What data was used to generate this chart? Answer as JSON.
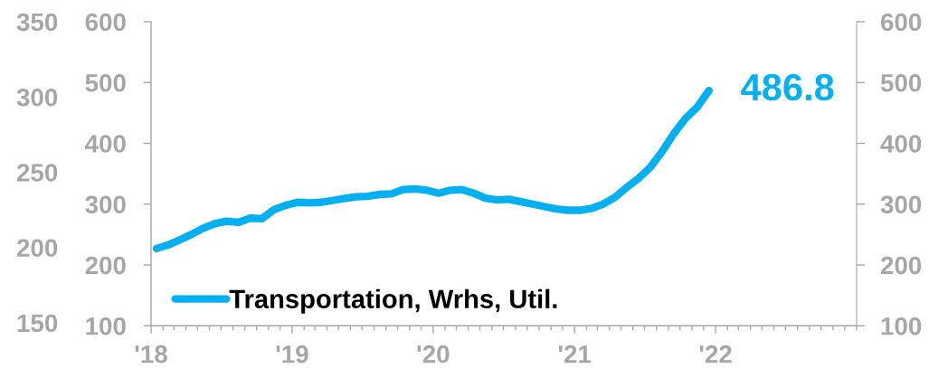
{
  "chart_data": {
    "type": "line",
    "x": [
      "2018-01-15",
      "2018-02-15",
      "2018-03-15",
      "2018-04-15",
      "2018-05-15",
      "2018-06-15",
      "2018-07-15",
      "2018-08-15",
      "2018-09-15",
      "2018-10-15",
      "2018-11-15",
      "2018-12-15",
      "2019-01-15",
      "2019-02-15",
      "2019-03-15",
      "2019-04-15",
      "2019-05-15",
      "2019-06-15",
      "2019-07-15",
      "2019-08-15",
      "2019-09-15",
      "2019-10-15",
      "2019-11-15",
      "2019-12-15",
      "2020-01-15",
      "2020-02-15",
      "2020-03-15",
      "2020-04-15",
      "2020-05-15",
      "2020-06-15",
      "2020-07-15",
      "2020-08-15",
      "2020-09-15",
      "2020-10-15",
      "2020-11-15",
      "2020-12-15",
      "2021-01-15",
      "2021-02-15",
      "2021-03-15",
      "2021-04-15",
      "2021-05-15",
      "2021-06-15",
      "2021-07-15",
      "2021-08-15",
      "2021-09-15",
      "2021-10-15",
      "2021-11-15",
      "2021-12-15"
    ],
    "series": [
      {
        "name": "Transportation, Wrhs, Util.",
        "color": "#00b0f0",
        "values": [
          227,
          233,
          241,
          250,
          260,
          268,
          272,
          270,
          277,
          276,
          291,
          298,
          303,
          302,
          303,
          306,
          309,
          312,
          313,
          316,
          317,
          324,
          325,
          323,
          318,
          323,
          324,
          318,
          310,
          307,
          308,
          304,
          300,
          296,
          292,
          290,
          290,
          293,
          300,
          311,
          327,
          342,
          360,
          386,
          416,
          441,
          460,
          486.8
        ],
        "value_labels": [
          null,
          null,
          null,
          null,
          null,
          null,
          null,
          null,
          null,
          null,
          null,
          null,
          null,
          null,
          null,
          null,
          null,
          null,
          null,
          null,
          null,
          null,
          null,
          null,
          null,
          null,
          null,
          null,
          null,
          null,
          null,
          null,
          null,
          null,
          null,
          null,
          null,
          null,
          null,
          null,
          null,
          null,
          null,
          null,
          null,
          null,
          null,
          "486.8"
        ]
      }
    ],
    "xlim": [
      "2018-01-01",
      "2023-01-01"
    ],
    "xticks": [
      {
        "value": "2018-01-01",
        "label": "'18"
      },
      {
        "value": "2018-02-01",
        "label": null
      },
      {
        "value": "2018-03-01",
        "label": null
      },
      {
        "value": "2018-04-01",
        "label": null
      },
      {
        "value": "2018-05-01",
        "label": null
      },
      {
        "value": "2018-06-01",
        "label": null
      },
      {
        "value": "2018-07-01",
        "label": null
      },
      {
        "value": "2018-08-01",
        "label": null
      },
      {
        "value": "2018-09-01",
        "label": null
      },
      {
        "value": "2018-10-01",
        "label": null
      },
      {
        "value": "2018-11-01",
        "label": null
      },
      {
        "value": "2018-12-01",
        "label": null
      },
      {
        "value": "2019-01-01",
        "label": "'19"
      },
      {
        "value": "2019-02-01",
        "label": null
      },
      {
        "value": "2019-03-01",
        "label": null
      },
      {
        "value": "2019-04-01",
        "label": null
      },
      {
        "value": "2019-05-01",
        "label": null
      },
      {
        "value": "2019-06-01",
        "label": null
      },
      {
        "value": "2019-07-01",
        "label": null
      },
      {
        "value": "2019-08-01",
        "label": null
      },
      {
        "value": "2019-09-01",
        "label": null
      },
      {
        "value": "2019-10-01",
        "label": null
      },
      {
        "value": "2019-11-01",
        "label": null
      },
      {
        "value": "2019-12-01",
        "label": null
      },
      {
        "value": "2020-01-01",
        "label": "'20"
      },
      {
        "value": "2020-02-01",
        "label": null
      },
      {
        "value": "2020-03-01",
        "label": null
      },
      {
        "value": "2020-04-01",
        "label": null
      },
      {
        "value": "2020-05-01",
        "label": null
      },
      {
        "value": "2020-06-01",
        "label": null
      },
      {
        "value": "2020-07-01",
        "label": null
      },
      {
        "value": "2020-08-01",
        "label": null
      },
      {
        "value": "2020-09-01",
        "label": null
      },
      {
        "value": "2020-10-01",
        "label": null
      },
      {
        "value": "2020-11-01",
        "label": null
      },
      {
        "value": "2020-12-01",
        "label": null
      },
      {
        "value": "2021-01-01",
        "label": "'21"
      },
      {
        "value": "2021-02-01",
        "label": null
      },
      {
        "value": "2021-03-01",
        "label": null
      },
      {
        "value": "2021-04-01",
        "label": null
      },
      {
        "value": "2021-05-01",
        "label": null
      },
      {
        "value": "2021-06-01",
        "label": null
      },
      {
        "value": "2021-07-01",
        "label": null
      },
      {
        "value": "2021-08-01",
        "label": null
      },
      {
        "value": "2021-09-01",
        "label": null
      },
      {
        "value": "2021-10-01",
        "label": null
      },
      {
        "value": "2021-11-01",
        "label": null
      },
      {
        "value": "2021-12-01",
        "label": null
      },
      {
        "value": "2022-01-01",
        "label": "'22"
      },
      {
        "value": "2022-02-01",
        "label": null
      },
      {
        "value": "2022-03-01",
        "label": null
      },
      {
        "value": "2022-04-01",
        "label": null
      },
      {
        "value": "2022-05-01",
        "label": null
      },
      {
        "value": "2022-06-01",
        "label": null
      },
      {
        "value": "2022-07-01",
        "label": null
      },
      {
        "value": "2022-08-01",
        "label": null
      },
      {
        "value": "2022-09-01",
        "label": null
      },
      {
        "value": "2022-10-01",
        "label": null
      },
      {
        "value": "2022-11-01",
        "label": null
      },
      {
        "value": "2022-12-01",
        "label": null
      },
      {
        "value": "2023-01-01",
        "label": null
      }
    ],
    "ylim": [
      100,
      600
    ],
    "yticks": [
      100,
      200,
      300,
      400,
      500,
      600
    ],
    "y2lim": [
      100,
      600
    ],
    "y2ticks": [
      100,
      200,
      300,
      400,
      500,
      600
    ],
    "y3lim": [
      148,
      350
    ],
    "y3ticks": [
      150,
      200,
      250,
      300,
      350
    ],
    "legend": "bottom left",
    "line_style": "solid"
  }
}
